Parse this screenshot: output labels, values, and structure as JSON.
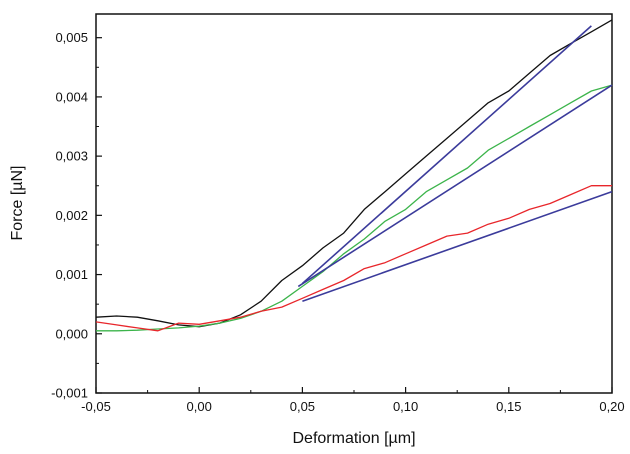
{
  "chart_data": {
    "type": "line",
    "title": "",
    "xlabel": "Deformation [µm]",
    "ylabel": "Force [µN]",
    "xlim": [
      -0.05,
      0.2
    ],
    "ylim": [
      -0.001,
      0.0054
    ],
    "grid": false,
    "x_ticks": [
      -0.05,
      0.0,
      0.05,
      0.1,
      0.15,
      0.2
    ],
    "x_tick_labels": [
      "-0,05",
      "0,00",
      "0,05",
      "0,10",
      "0,15",
      "0,20"
    ],
    "y_ticks": [
      -0.001,
      0.0,
      0.001,
      0.002,
      0.003,
      0.004,
      0.005
    ],
    "y_tick_labels": [
      "-0,001",
      "0,000",
      "0,001",
      "0,002",
      "0,003",
      "0,004",
      "0,005"
    ],
    "series": [
      {
        "color": "#111111",
        "x": [
          -0.05,
          -0.04,
          -0.03,
          -0.02,
          -0.01,
          0.0,
          0.01,
          0.02,
          0.03,
          0.04,
          0.05,
          0.06,
          0.07,
          0.08,
          0.09,
          0.1,
          0.11,
          0.12,
          0.13,
          0.14,
          0.15,
          0.16,
          0.17,
          0.18,
          0.19,
          0.2
        ],
        "y": [
          0.00028,
          0.0003,
          0.00028,
          0.00022,
          0.00015,
          0.00012,
          0.00018,
          0.00032,
          0.00055,
          0.0009,
          0.00115,
          0.00145,
          0.0017,
          0.0021,
          0.0024,
          0.0027,
          0.003,
          0.0033,
          0.0036,
          0.0039,
          0.0041,
          0.0044,
          0.0047,
          0.0049,
          0.0051,
          0.0053
        ]
      },
      {
        "color": "#3cb44b",
        "x": [
          -0.05,
          -0.04,
          -0.03,
          -0.02,
          -0.01,
          0.0,
          0.01,
          0.02,
          0.03,
          0.04,
          0.05,
          0.06,
          0.07,
          0.08,
          0.09,
          0.1,
          0.11,
          0.12,
          0.13,
          0.14,
          0.15,
          0.16,
          0.17,
          0.18,
          0.19,
          0.2
        ],
        "y": [
          5e-05,
          5e-05,
          6e-05,
          8e-05,
          0.0001,
          0.00013,
          0.00018,
          0.00026,
          0.00038,
          0.00055,
          0.0008,
          0.00105,
          0.00135,
          0.0016,
          0.0019,
          0.0021,
          0.0024,
          0.0026,
          0.0028,
          0.0031,
          0.0033,
          0.0035,
          0.0037,
          0.0039,
          0.0041,
          0.0042
        ]
      },
      {
        "color": "#e8262b",
        "x": [
          -0.05,
          -0.04,
          -0.03,
          -0.02,
          -0.01,
          0.0,
          0.01,
          0.02,
          0.03,
          0.04,
          0.05,
          0.06,
          0.07,
          0.08,
          0.09,
          0.1,
          0.11,
          0.12,
          0.13,
          0.14,
          0.15,
          0.16,
          0.17,
          0.18,
          0.19,
          0.2
        ],
        "y": [
          0.0002,
          0.00015,
          0.0001,
          5e-05,
          0.00018,
          0.00016,
          0.00022,
          0.00028,
          0.00038,
          0.00045,
          0.0006,
          0.00075,
          0.0009,
          0.0011,
          0.0012,
          0.00135,
          0.0015,
          0.00165,
          0.0017,
          0.00185,
          0.00195,
          0.0021,
          0.0022,
          0.00235,
          0.0025,
          0.0025
        ]
      }
    ],
    "fit_lines": [
      {
        "color": "#3b3b9b",
        "x": [
          0.05,
          0.19
        ],
        "y": [
          0.00085,
          0.0052
        ]
      },
      {
        "color": "#3b3b9b",
        "x": [
          0.048,
          0.2
        ],
        "y": [
          0.0008,
          0.0042
        ]
      },
      {
        "color": "#3b3b9b",
        "x": [
          0.05,
          0.2
        ],
        "y": [
          0.00055,
          0.0024
        ]
      }
    ]
  }
}
